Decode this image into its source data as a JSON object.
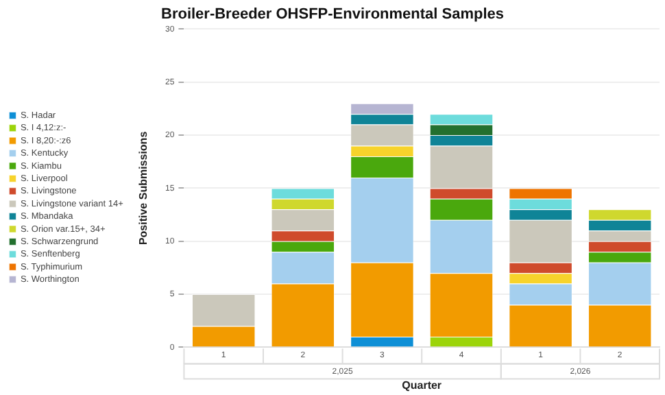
{
  "chart_data": {
    "type": "bar",
    "title": "Broiler-Breeder OHSFP-Environmental Samples",
    "xlabel": "Quarter",
    "ylabel": "Positive Submissions",
    "categories": [
      "1",
      "2",
      "3",
      "4",
      "1",
      "2"
    ],
    "annotations": [
      "2,025",
      "2,026"
    ],
    "stacked": true,
    "ylim": [
      0,
      30
    ],
    "yticks": [
      0,
      5,
      10,
      15,
      20,
      25,
      30
    ],
    "grid": "y",
    "legend": "left",
    "series": [
      {
        "name": "S. Hadar",
        "color": "#0e8fd6",
        "values": [
          0,
          0,
          1,
          0,
          0,
          0
        ]
      },
      {
        "name": "S. I 4,12:z:-",
        "color": "#9cd40a",
        "values": [
          0,
          0,
          0,
          1,
          0,
          0
        ]
      },
      {
        "name": "S. I 8,20:-:z6",
        "color": "#f29b00",
        "values": [
          2,
          6,
          7,
          6,
          4,
          4
        ]
      },
      {
        "name": "S. Kentucky",
        "color": "#a4cfee",
        "values": [
          0,
          3,
          8,
          5,
          2,
          4
        ]
      },
      {
        "name": "S. Kiambu",
        "color": "#4aa80d",
        "values": [
          0,
          1,
          2,
          2,
          0,
          1
        ]
      },
      {
        "name": "S. Liverpool",
        "color": "#f7d32b",
        "values": [
          0,
          0,
          1,
          0,
          1,
          0
        ]
      },
      {
        "name": "S. Livingstone",
        "color": "#cf4b2c",
        "values": [
          0,
          1,
          0,
          1,
          1,
          1
        ]
      },
      {
        "name": "S. Livingstone variant 14+",
        "color": "#cbc8bb",
        "values": [
          3,
          2,
          2,
          4,
          4,
          1
        ]
      },
      {
        "name": "S. Mbandaka",
        "color": "#0f8497",
        "values": [
          0,
          0,
          1,
          1,
          1,
          1
        ]
      },
      {
        "name": "S. Orion var.15+, 34+",
        "color": "#cfd82e",
        "values": [
          0,
          1,
          0,
          0,
          0,
          1
        ]
      },
      {
        "name": "S. Schwarzengrund",
        "color": "#23702f",
        "values": [
          0,
          0,
          0,
          1,
          0,
          0
        ]
      },
      {
        "name": "S. Senftenberg",
        "color": "#6ddcdc",
        "values": [
          0,
          1,
          0,
          1,
          1,
          0
        ]
      },
      {
        "name": "S. Typhimurium",
        "color": "#ee7400",
        "values": [
          0,
          0,
          0,
          0,
          1,
          0
        ]
      },
      {
        "name": "S. Worthington",
        "color": "#b6b5d2",
        "values": [
          0,
          0,
          1,
          0,
          0,
          0
        ]
      }
    ]
  }
}
